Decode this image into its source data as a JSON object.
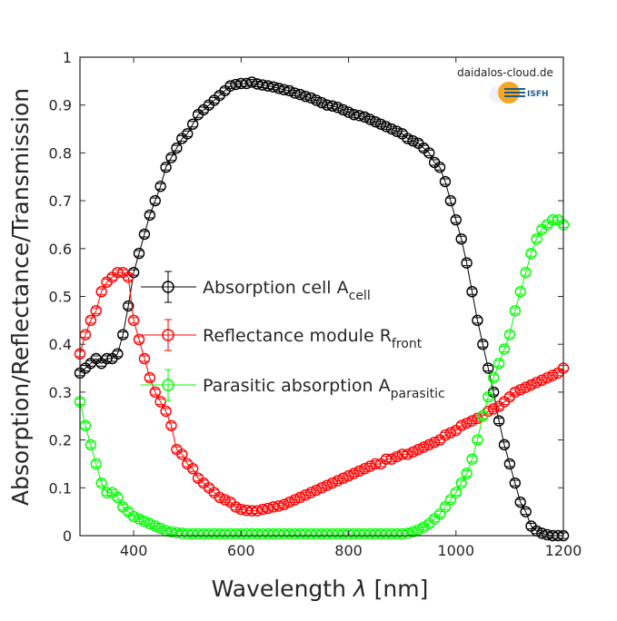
{
  "chart_data": {
    "type": "scatter",
    "title": "",
    "xlabel": "Wavelength",
    "xlabel_symbol": "λ",
    "xlabel_unit": "[nm]",
    "ylabel": "Absorption/Reflectance/Transmission",
    "xlim": [
      300,
      1200
    ],
    "ylim": [
      0,
      1
    ],
    "xticks": [
      "400",
      "600",
      "800",
      "1000",
      "1200"
    ],
    "yticks": [
      "0",
      "0.1",
      "0.2",
      "0.3",
      "0.4",
      "0.5",
      "0.6",
      "0.7",
      "0.8",
      "0.9",
      "1"
    ],
    "grid": false,
    "legend_position": "center-left",
    "marker": "open-circle-with-errorbar",
    "x": [
      300,
      310,
      320,
      330,
      340,
      350,
      360,
      370,
      380,
      390,
      400,
      410,
      420,
      430,
      440,
      450,
      460,
      470,
      480,
      490,
      500,
      510,
      520,
      530,
      540,
      550,
      560,
      570,
      580,
      590,
      600,
      610,
      620,
      630,
      640,
      650,
      660,
      670,
      680,
      690,
      700,
      710,
      720,
      730,
      740,
      750,
      760,
      770,
      780,
      790,
      800,
      810,
      820,
      830,
      840,
      850,
      860,
      870,
      880,
      890,
      900,
      910,
      920,
      930,
      940,
      950,
      960,
      970,
      980,
      990,
      1000,
      1010,
      1020,
      1030,
      1040,
      1050,
      1060,
      1070,
      1080,
      1090,
      1100,
      1110,
      1120,
      1130,
      1140,
      1150,
      1160,
      1170,
      1180,
      1190,
      1200
    ],
    "series": [
      {
        "name": "Absorption cell A",
        "name_sub": "cell",
        "color": "#000000",
        "values": [
          0.34,
          0.35,
          0.36,
          0.37,
          0.36,
          0.37,
          0.37,
          0.38,
          0.42,
          0.48,
          0.55,
          0.59,
          0.63,
          0.67,
          0.7,
          0.73,
          0.77,
          0.79,
          0.81,
          0.83,
          0.84,
          0.86,
          0.88,
          0.89,
          0.9,
          0.91,
          0.92,
          0.93,
          0.94,
          0.943,
          0.945,
          0.945,
          0.948,
          0.944,
          0.942,
          0.94,
          0.938,
          0.935,
          0.932,
          0.93,
          0.925,
          0.922,
          0.918,
          0.915,
          0.91,
          0.905,
          0.9,
          0.898,
          0.895,
          0.89,
          0.885,
          0.88,
          0.878,
          0.875,
          0.87,
          0.865,
          0.86,
          0.855,
          0.85,
          0.845,
          0.84,
          0.83,
          0.825,
          0.82,
          0.81,
          0.8,
          0.78,
          0.77,
          0.74,
          0.7,
          0.66,
          0.62,
          0.57,
          0.51,
          0.45,
          0.4,
          0.35,
          0.3,
          0.24,
          0.19,
          0.15,
          0.11,
          0.07,
          0.05,
          0.02,
          0.01,
          0.005,
          0.002,
          0.0,
          0.0,
          0.0
        ]
      },
      {
        "name": "Reflectance module R",
        "name_sub": "front",
        "color": "#ff0000",
        "values": [
          0.38,
          0.42,
          0.45,
          0.47,
          0.51,
          0.53,
          0.54,
          0.55,
          0.55,
          0.54,
          0.45,
          0.41,
          0.37,
          0.33,
          0.3,
          0.28,
          0.26,
          0.23,
          0.18,
          0.17,
          0.15,
          0.14,
          0.12,
          0.11,
          0.1,
          0.09,
          0.08,
          0.075,
          0.07,
          0.06,
          0.055,
          0.053,
          0.052,
          0.052,
          0.055,
          0.057,
          0.06,
          0.062,
          0.065,
          0.07,
          0.075,
          0.08,
          0.085,
          0.09,
          0.095,
          0.1,
          0.105,
          0.11,
          0.115,
          0.12,
          0.125,
          0.13,
          0.135,
          0.14,
          0.145,
          0.15,
          0.15,
          0.16,
          0.16,
          0.165,
          0.17,
          0.17,
          0.175,
          0.18,
          0.185,
          0.19,
          0.195,
          0.2,
          0.21,
          0.215,
          0.22,
          0.23,
          0.235,
          0.24,
          0.245,
          0.25,
          0.26,
          0.265,
          0.27,
          0.28,
          0.29,
          0.3,
          0.305,
          0.31,
          0.315,
          0.32,
          0.325,
          0.33,
          0.335,
          0.34,
          0.35
        ]
      },
      {
        "name": "Parasitic absorption A",
        "name_sub": "parasitic",
        "color": "#00ff00",
        "values": [
          0.28,
          0.23,
          0.19,
          0.15,
          0.11,
          0.09,
          0.09,
          0.08,
          0.06,
          0.05,
          0.04,
          0.035,
          0.03,
          0.025,
          0.02,
          0.015,
          0.01,
          0.008,
          0.006,
          0.005,
          0.004,
          0.004,
          0.004,
          0.004,
          0.004,
          0.004,
          0.004,
          0.004,
          0.004,
          0.004,
          0.004,
          0.004,
          0.004,
          0.004,
          0.004,
          0.004,
          0.004,
          0.004,
          0.004,
          0.004,
          0.004,
          0.004,
          0.004,
          0.004,
          0.004,
          0.004,
          0.004,
          0.004,
          0.004,
          0.004,
          0.004,
          0.004,
          0.004,
          0.004,
          0.004,
          0.004,
          0.004,
          0.004,
          0.004,
          0.004,
          0.004,
          0.005,
          0.008,
          0.012,
          0.018,
          0.025,
          0.035,
          0.045,
          0.06,
          0.075,
          0.09,
          0.11,
          0.13,
          0.16,
          0.2,
          0.25,
          0.29,
          0.33,
          0.36,
          0.39,
          0.42,
          0.47,
          0.51,
          0.55,
          0.59,
          0.62,
          0.64,
          0.65,
          0.66,
          0.66,
          0.65
        ]
      }
    ]
  },
  "watermark": {
    "site": "daidalos-cloud.de",
    "org": "ISFH"
  }
}
